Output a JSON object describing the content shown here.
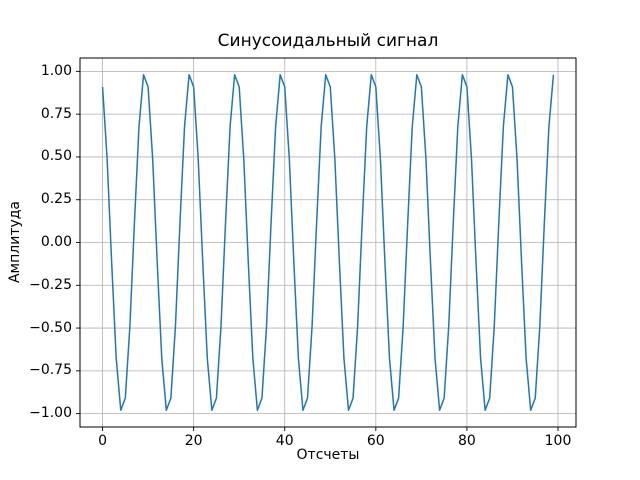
{
  "chart_data": {
    "type": "line",
    "title": "Синусоидальный сигнал",
    "xlabel": "Отсчеты",
    "ylabel": "Амплитуда",
    "legend": null,
    "grid": true,
    "grid_color": "#b0b0b0",
    "line_color": "#1f77b4",
    "axes_color": "#000000",
    "background_color": "#ffffff",
    "xlim": [
      -4.95,
      103.95
    ],
    "ylim": [
      -1.0782,
      1.0782
    ],
    "x_ticks": {
      "values": [
        0,
        20,
        40,
        60,
        80,
        100
      ],
      "labels": [
        "0",
        "20",
        "40",
        "60",
        "80",
        "100"
      ]
    },
    "y_ticks": {
      "values": [
        1.0,
        0.75,
        0.5,
        0.25,
        0.0,
        -0.25,
        -0.5,
        -0.75,
        -1.0
      ],
      "labels": [
        "1.00",
        "0.75",
        "0.50",
        "0.25",
        "0.00",
        "−0.25",
        "−0.50",
        "−0.75",
        "−1.00"
      ]
    },
    "x": [
      0,
      1,
      2,
      3,
      4,
      5,
      6,
      7,
      8,
      9,
      10,
      11,
      12,
      13,
      14,
      15,
      16,
      17,
      18,
      19,
      20,
      21,
      22,
      23,
      24,
      25,
      26,
      27,
      28,
      29,
      30,
      31,
      32,
      33,
      34,
      35,
      36,
      37,
      38,
      39,
      40,
      41,
      42,
      43,
      44,
      45,
      46,
      47,
      48,
      49,
      50,
      51,
      52,
      53,
      54,
      55,
      56,
      57,
      58,
      59,
      60,
      61,
      62,
      63,
      64,
      65,
      66,
      67,
      68,
      69,
      70,
      71,
      72,
      73,
      74,
      75,
      76,
      77,
      78,
      79,
      80,
      81,
      82,
      83,
      84,
      85,
      86,
      87,
      88,
      89,
      90,
      91,
      92,
      93,
      94,
      95,
      96,
      97,
      98,
      99
    ],
    "y": [
      0.9093,
      0.491,
      -0.1148,
      -0.6768,
      -0.9802,
      -0.9093,
      -0.491,
      0.1148,
      0.6768,
      0.9802,
      0.9093,
      0.491,
      -0.1148,
      -0.6768,
      -0.9802,
      -0.9093,
      -0.491,
      0.1148,
      0.6768,
      0.9802,
      0.9093,
      0.491,
      -0.1148,
      -0.6768,
      -0.9802,
      -0.9093,
      -0.491,
      0.1148,
      0.6768,
      0.9802,
      0.9093,
      0.491,
      -0.1148,
      -0.6768,
      -0.9802,
      -0.9093,
      -0.491,
      0.1148,
      0.6768,
      0.9802,
      0.9093,
      0.491,
      -0.1148,
      -0.6768,
      -0.9802,
      -0.9093,
      -0.491,
      0.1148,
      0.6768,
      0.9802,
      0.9093,
      0.491,
      -0.1148,
      -0.6768,
      -0.9802,
      -0.9093,
      -0.491,
      0.1148,
      0.6768,
      0.9802,
      0.9093,
      0.491,
      -0.1148,
      -0.6768,
      -0.9802,
      -0.9093,
      -0.491,
      0.1148,
      0.6768,
      0.9802,
      0.9093,
      0.491,
      -0.1148,
      -0.6768,
      -0.9802,
      -0.9093,
      -0.491,
      0.1148,
      0.6768,
      0.9802,
      0.9093,
      0.491,
      -0.1148,
      -0.6768,
      -0.9802,
      -0.9093,
      -0.491,
      0.1148,
      0.6768,
      0.9802,
      0.9093,
      0.491,
      -0.1148,
      -0.6768,
      -0.9802,
      -0.9093,
      -0.491,
      0.1148,
      0.6768,
      0.9802
    ]
  }
}
